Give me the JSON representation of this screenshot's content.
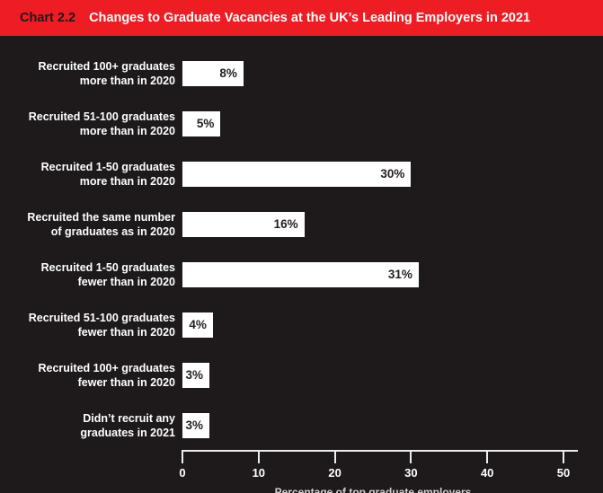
{
  "header": {
    "kicker": "Chart 2.2",
    "title": "Changes to Graduate Vacancies at the UK’s Leading Employers in 2021"
  },
  "colors": {
    "header_red": "#ee1c23",
    "background": "#1e1a1b",
    "bar_fill": "#ffffff",
    "bar_value_text": "#231f20",
    "label_text": "#ffffff",
    "axis_line": "#ededed"
  },
  "chart_data": {
    "type": "bar",
    "orientation": "horizontal",
    "title": "Chart 2.2  Changes to Graduate Vacancies at the UK’s Leading Employers in 2021",
    "categories": [
      "Recruited 100+ graduates more than in 2020",
      "Recruited 51-100 graduates more than in 2020",
      "Recruited 1-50 graduates more than in 2020",
      "Recruited the same number of graduates as in 2020",
      "Recruited 1-50 graduates fewer than in 2020",
      "Recruited 51-100 graduates fewer than in 2020",
      "Recruited 100+ graduates fewer than in 2020",
      "Didn’t recruit any graduates in 2021"
    ],
    "category_lines": [
      [
        "Recruited 100+ graduates",
        "more than in 2020"
      ],
      [
        "Recruited 51-100 graduates",
        "more than in 2020"
      ],
      [
        "Recruited 1-50 graduates",
        "more than in 2020"
      ],
      [
        "Recruited the same number",
        "of graduates as in 2020"
      ],
      [
        "Recruited 1-50 graduates",
        "fewer than in 2020"
      ],
      [
        "Recruited 51-100 graduates",
        "fewer than in 2020"
      ],
      [
        "Recruited 100+ graduates",
        "fewer than in 2020"
      ],
      [
        "Didn’t recruit any",
        "graduates in 2021"
      ]
    ],
    "values": [
      8,
      5,
      30,
      16,
      31,
      4,
      3,
      3
    ],
    "value_labels": [
      "8%",
      "5%",
      "30%",
      "16%",
      "31%",
      "4%",
      "3%",
      "3%"
    ],
    "xlabel": "Percentage of top graduate employers",
    "ylabel": "",
    "x_ticks": [
      0,
      10,
      20,
      30,
      40,
      50
    ],
    "xlim": [
      0,
      52
    ],
    "grid": false,
    "legend": false,
    "value_label_position": "inside-right"
  }
}
